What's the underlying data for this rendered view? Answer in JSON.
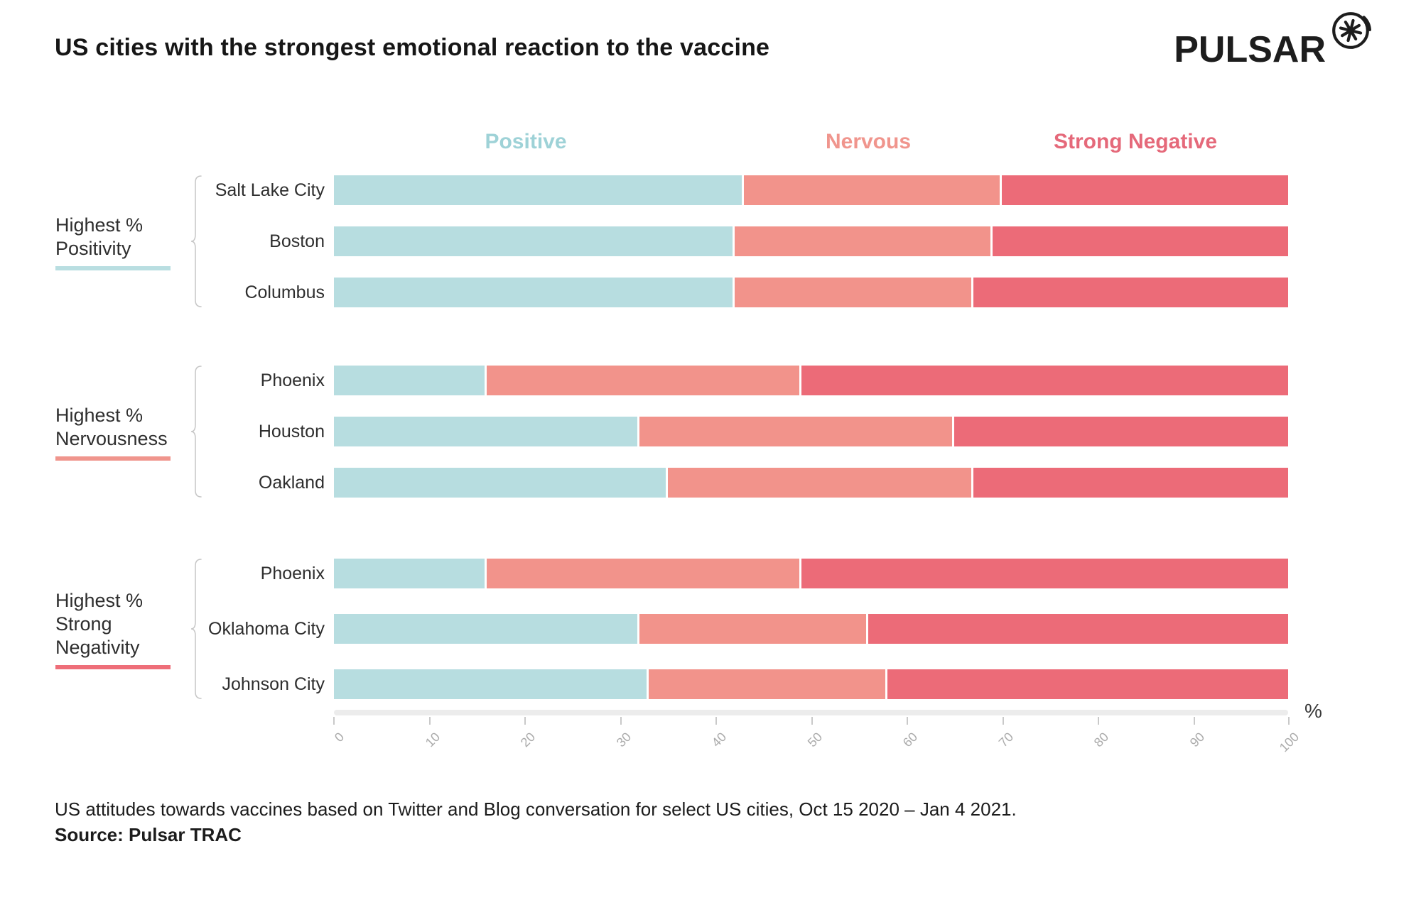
{
  "title": "US cities with the strongest emotional reaction to the vaccine",
  "logo": {
    "text": "PULSAR"
  },
  "legend": {
    "items": [
      {
        "label": "Positive",
        "color": "#9ed2d7"
      },
      {
        "label": "Nervous",
        "color": "#f0958d"
      },
      {
        "label": "Strong Negative",
        "color": "#e5697a"
      }
    ]
  },
  "colors": {
    "positive": "#b7dde0",
    "nervous": "#f2938b",
    "strong_negative": "#ec6b78"
  },
  "chart_data": {
    "type": "bar",
    "stacked": true,
    "orientation": "horizontal",
    "unit": "%",
    "series_names": [
      "Positive",
      "Nervous",
      "Strong Negative"
    ],
    "x_axis": {
      "min": 0,
      "max": 100,
      "ticks": [
        0,
        10,
        20,
        30,
        40,
        50,
        60,
        70,
        80,
        90,
        100
      ],
      "label": "%"
    },
    "groups": [
      {
        "label_lines": [
          "Highest %",
          "Positivity"
        ],
        "underline_color": "#b9dee1",
        "rows": [
          {
            "city": "Salt Lake City",
            "values": [
              43,
              27,
              30
            ]
          },
          {
            "city": "Boston",
            "values": [
              42,
              27,
              31
            ]
          },
          {
            "city": "Columbus",
            "values": [
              42,
              25,
              33
            ]
          }
        ]
      },
      {
        "label_lines": [
          "Highest %",
          "Nervousness"
        ],
        "underline_color": "#f0958d",
        "rows": [
          {
            "city": "Phoenix",
            "values": [
              16,
              33,
              51
            ]
          },
          {
            "city": "Houston",
            "values": [
              32,
              33,
              35
            ]
          },
          {
            "city": "Oakland",
            "values": [
              35,
              32,
              33
            ]
          }
        ]
      },
      {
        "label_lines": [
          "Highest %",
          "Strong",
          "Negativity"
        ],
        "underline_color": "#ee6e79",
        "rows": [
          {
            "city": "Phoenix",
            "values": [
              16,
              33,
              51
            ]
          },
          {
            "city": "Oklahoma City",
            "values": [
              32,
              24,
              44
            ]
          },
          {
            "city": "Johnson City",
            "values": [
              33,
              25,
              42
            ]
          }
        ]
      }
    ]
  },
  "footer": {
    "line1": "US attitudes towards vaccines based on Twitter and Blog conversation for select US cities, Oct 15 2020 – Jan 4 2021.",
    "line2": "Source: Pulsar TRAC"
  }
}
